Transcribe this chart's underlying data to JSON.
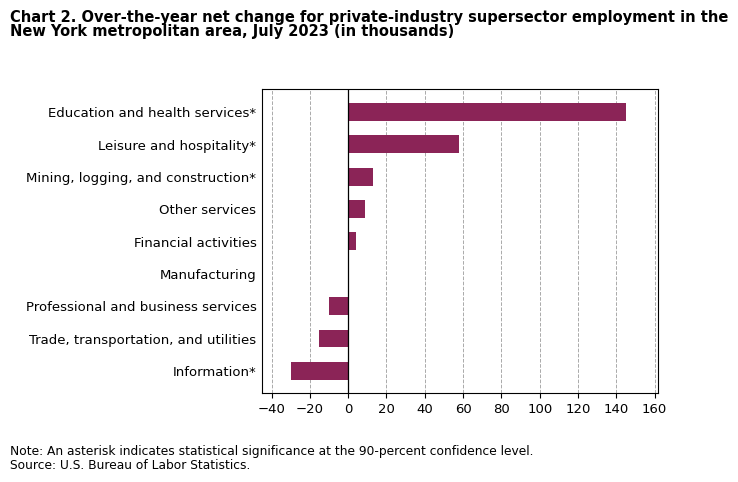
{
  "title_line1": "Chart 2. Over-the-year net change for private-industry supersector employment in the",
  "title_line2": "New York metropolitan area, July 2023 (in thousands)",
  "categories": [
    "Information*",
    "Trade, transportation, and utilities",
    "Professional and business services",
    "Manufacturing",
    "Financial activities",
    "Other services",
    "Mining, logging, and construction*",
    "Leisure and hospitality*",
    "Education and health services*"
  ],
  "values": [
    -30,
    -15,
    -10,
    0,
    4,
    9,
    13,
    58,
    145
  ],
  "bar_color": "#8B2457",
  "background_color": "#ffffff",
  "xlim": [
    -45,
    162
  ],
  "xticks": [
    -40,
    -20,
    0,
    20,
    40,
    60,
    80,
    100,
    120,
    140,
    160
  ],
  "note_line1": "Note: An asterisk indicates statistical significance at the 90-percent confidence level.",
  "note_line2": "Source: U.S. Bureau of Labor Statistics.",
  "grid_color": "#aaaaaa",
  "title_fontsize": 10.5,
  "label_fontsize": 9.5,
  "tick_fontsize": 9.5,
  "note_fontsize": 8.8
}
